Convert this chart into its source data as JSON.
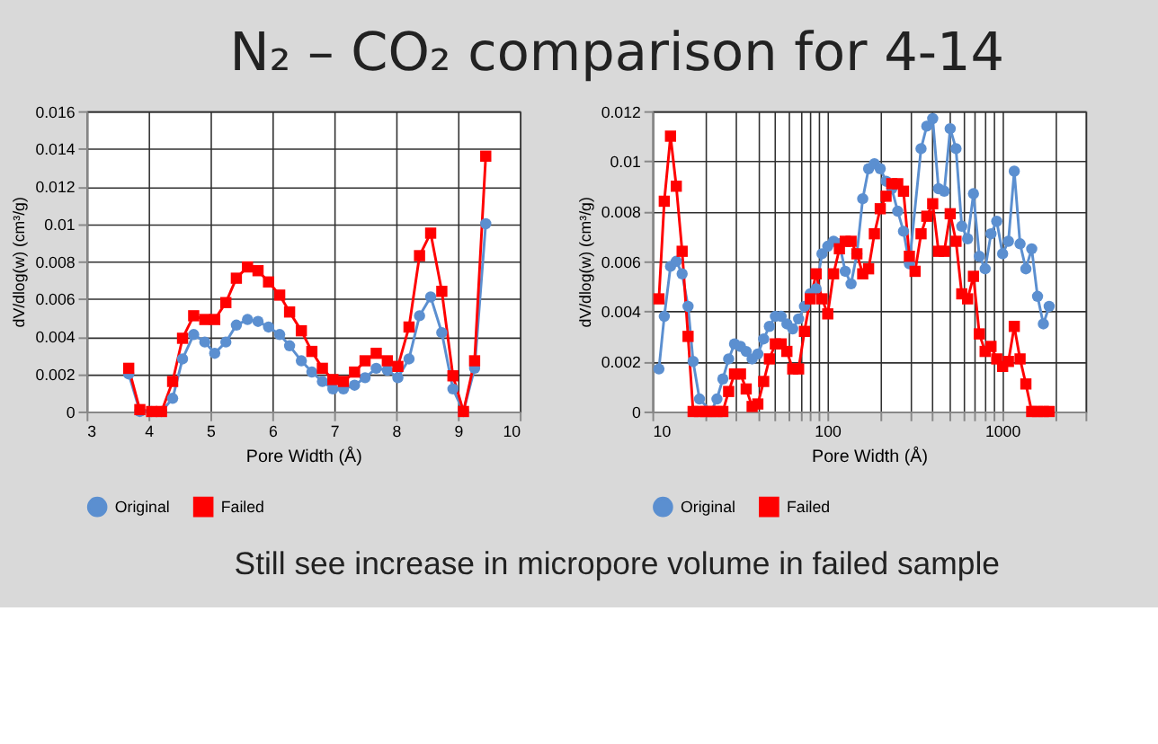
{
  "chart_data": [
    {
      "type": "line",
      "title": "N₂ – CO₂ comparison for 4-14",
      "xlabel": "Pore Width (Å)",
      "ylabel": "dV/dlog(w) (cm³/g)",
      "xlim": [
        3,
        10
      ],
      "xticks": [
        3,
        4,
        5,
        6,
        7,
        8,
        9,
        10
      ],
      "ylim": [
        0,
        0.016
      ],
      "yticks": [
        0,
        0.002,
        0.004,
        0.006,
        0.008,
        0.01,
        0.012,
        0.014,
        0.016
      ],
      "grid": true,
      "legend": "bottom",
      "x": [
        3.68,
        3.86,
        4.05,
        4.21,
        4.39,
        4.55,
        4.73,
        4.91,
        5.07,
        5.25,
        5.42,
        5.6,
        5.77,
        5.94,
        6.12,
        6.28,
        6.47,
        6.64,
        6.81,
        6.98,
        7.15,
        7.33,
        7.5,
        7.68,
        7.86,
        8.03,
        8.21,
        8.38,
        8.56,
        8.74,
        8.92,
        9.09,
        9.27,
        9.45
      ],
      "series": [
        {
          "name": "Original",
          "color": "#5b8fd0",
          "marker": "circle",
          "values": [
            0.002,
            0.0,
            0,
            0,
            0.0007,
            0.0028,
            0.0041,
            0.0037,
            0.0031,
            0.0037,
            0.0046,
            0.0049,
            0.0048,
            0.0045,
            0.0041,
            0.0035,
            0.0027,
            0.0021,
            0.0016,
            0.0012,
            0.0012,
            0.0014,
            0.0018,
            0.0023,
            0.0022,
            0.0018,
            0.0028,
            0.0051,
            0.0061,
            0.0042,
            0.0012,
            0,
            0.0023,
            0.01
          ]
        },
        {
          "name": "Failed",
          "color": "#ff0000",
          "marker": "square",
          "values": [
            0.0023,
            0.0001,
            0,
            0,
            0.0016,
            0.0039,
            0.0051,
            0.0049,
            0.0049,
            0.0058,
            0.0071,
            0.0077,
            0.0075,
            0.0069,
            0.0062,
            0.0053,
            0.0043,
            0.0032,
            0.0023,
            0.0017,
            0.0016,
            0.0021,
            0.0027,
            0.0031,
            0.0027,
            0.0024,
            0.0045,
            0.0083,
            0.0095,
            0.0064,
            0.0019,
            0,
            0.0027,
            0.0136
          ]
        }
      ]
    },
    {
      "type": "line",
      "xlabel": "Pore Width (Å)",
      "ylabel": "dV/dlog(w) (cm³/g)",
      "log": "x",
      "xlim": [
        10,
        3000
      ],
      "xticks": [
        10,
        {
          "value": 20,
          "label": null
        },
        {
          "value": 30,
          "label": null
        },
        {
          "value": 40,
          "label": null
        },
        {
          "value": 50,
          "label": null
        },
        {
          "value": 60,
          "label": null
        },
        {
          "value": 70,
          "label": null
        },
        {
          "value": 80,
          "label": null
        },
        {
          "value": 90,
          "label": null
        },
        100,
        {
          "value": 200,
          "label": null
        },
        {
          "value": 300,
          "label": null
        },
        {
          "value": 400,
          "label": null
        },
        {
          "value": 500,
          "label": null
        },
        {
          "value": 600,
          "label": null
        },
        {
          "value": 700,
          "label": null
        },
        {
          "value": 800,
          "label": null
        },
        {
          "value": 900,
          "label": null
        },
        1000,
        {
          "value": 2000,
          "label": null
        },
        {
          "value": 3000,
          "label": null
        }
      ],
      "ylim": [
        0,
        0.012
      ],
      "yticks": [
        0,
        0.002,
        0.004,
        0.006,
        0.008,
        0.01,
        0.012
      ],
      "grid": true,
      "legend": "bottom",
      "annotations": [
        "Still see increase in micropore volume in failed sample"
      ],
      "series": [
        {
          "name": "Original",
          "color": "#5b8fd0",
          "marker": "circle",
          "x": [
            10.9,
            11.7,
            12.7,
            13.7,
            14.8,
            16,
            17.1,
            18.6,
            21.7,
            23.4,
            25.3,
            27.3,
            29.5,
            31.9,
            34.4,
            37.2,
            40.1,
            43.3,
            46.7,
            50.5,
            54.5,
            58.8,
            63.5,
            68.6,
            74.1,
            80,
            86.4,
            93.3,
            100.7,
            108.7,
            117.4,
            126.8,
            136.9,
            147.8,
            159.6,
            172.4,
            186.1,
            201,
            217,
            234,
            253,
            273,
            295,
            344,
            371,
            401,
            433,
            467,
            505,
            545,
            588,
            635,
            686,
            741,
            800,
            864,
            932,
            1007,
            1087,
            1174,
            1267,
            1368,
            1477,
            1595,
            1722,
            1859
          ],
          "values": [
            0.0017,
            0.0038,
            0.0058,
            0.006,
            0.0055,
            0.0042,
            0.002,
            0.0005,
            0,
            0.0005,
            0.0013,
            0.0021,
            0.0027,
            0.0026,
            0.0024,
            0.0021,
            0.0023,
            0.0029,
            0.0034,
            0.0038,
            0.0038,
            0.0035,
            0.0033,
            0.0037,
            0.0042,
            0.0047,
            0.0049,
            0.0063,
            0.0066,
            0.0068,
            0.0067,
            0.0056,
            0.0051,
            0.0063,
            0.0085,
            0.0097,
            0.0099,
            0.0097,
            0.0092,
            0.0089,
            0.008,
            0.0072,
            0.0059,
            0.0105,
            0.0114,
            0.0117,
            0.0089,
            0.0088,
            0.0113,
            0.0105,
            0.0074,
            0.0069,
            0.0087,
            0.0062,
            0.0057,
            0.0071,
            0.0076,
            0.0063,
            0.0068,
            0.0096,
            0.0067,
            0.0057,
            0.0065,
            0.0046,
            0.0035,
            0.0042
          ]
        },
        {
          "name": "Failed",
          "color": "#ff0000",
          "marker": "square",
          "x": [
            10.9,
            11.7,
            12.7,
            13.7,
            14.8,
            16,
            17.1,
            18.6,
            20.1,
            21.7,
            23.4,
            25.3,
            27.3,
            29.5,
            31.9,
            34.4,
            37.2,
            40.1,
            43.3,
            46.7,
            50.5,
            54.5,
            58.8,
            63.5,
            68.6,
            74.1,
            80,
            86.4,
            93.3,
            100.7,
            108.7,
            117.4,
            126.8,
            136.9,
            147.8,
            159.6,
            172.4,
            186.1,
            201,
            217,
            234,
            253,
            273,
            295,
            318,
            344,
            371,
            401,
            433,
            467,
            505,
            545,
            588,
            635,
            686,
            741,
            800,
            864,
            932,
            1007,
            1087,
            1174,
            1267,
            1368,
            1477,
            1595,
            1722,
            1859
          ],
          "values": [
            0.0045,
            0.0084,
            0.011,
            0.009,
            0.0064,
            0.003,
            0,
            0,
            0,
            0,
            0,
            0,
            0.0008,
            0.0015,
            0.0015,
            0.0009,
            0.0002,
            0.0003,
            0.0012,
            0.0021,
            0.0027,
            0.0027,
            0.0024,
            0.0017,
            0.0017,
            0.0032,
            0.0045,
            0.0055,
            0.0045,
            0.0039,
            0.0055,
            0.0065,
            0.0068,
            0.0068,
            0.0063,
            0.0055,
            0.0057,
            0.0071,
            0.0081,
            0.0086,
            0.0091,
            0.0091,
            0.0088,
            0.0062,
            0.0056,
            0.0071,
            0.0078,
            0.0083,
            0.0064,
            0.0064,
            0.0079,
            0.0068,
            0.0047,
            0.0045,
            0.0054,
            0.0031,
            0.0024,
            0.0026,
            0.0021,
            0.0018,
            0.002,
            0.0034,
            0.0021,
            0.0011,
            0,
            0,
            0,
            0
          ]
        }
      ]
    }
  ]
}
